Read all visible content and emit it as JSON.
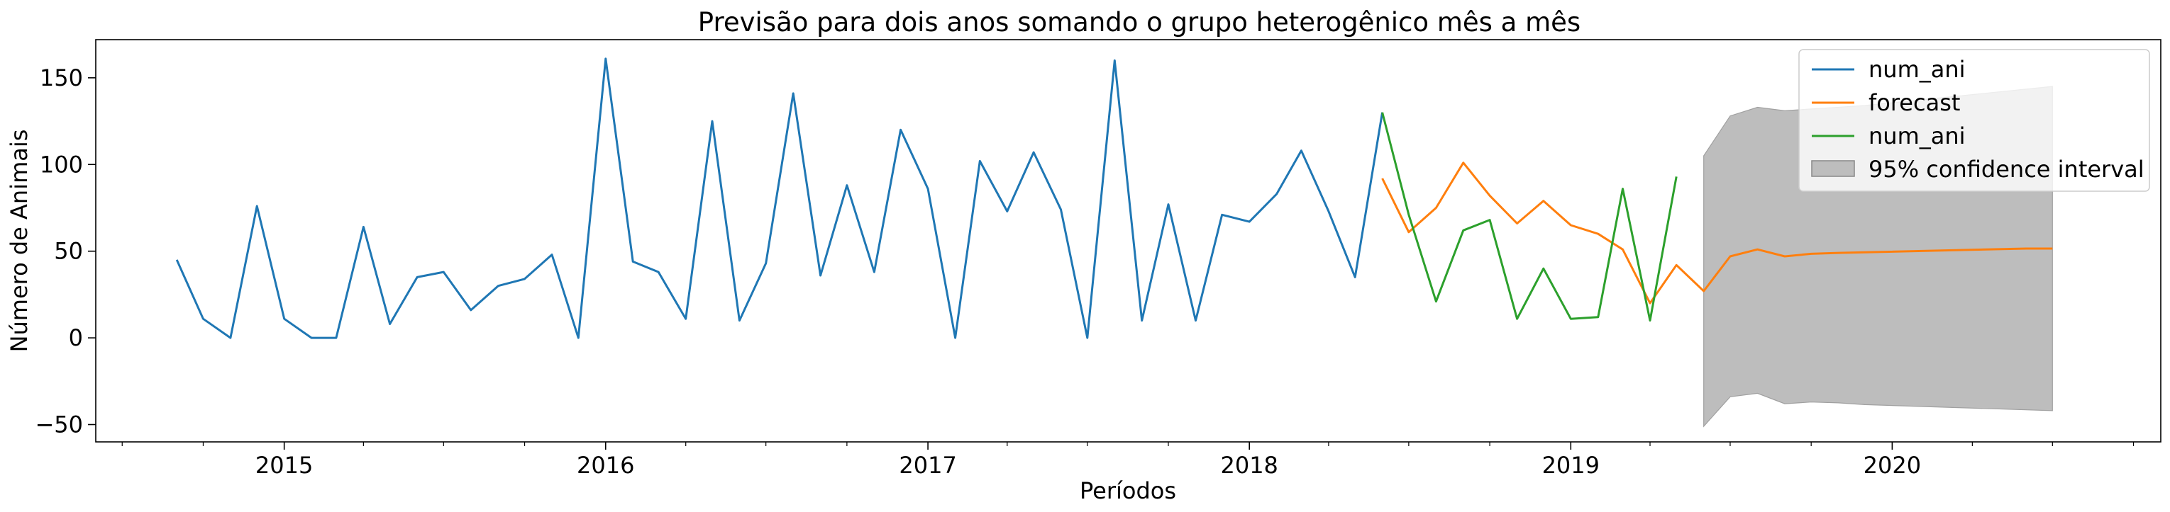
{
  "chart_data": {
    "type": "line",
    "title": "Previsão para dois anos somando o grupo heterogênico mês a mês",
    "xlabel": "Períodos",
    "ylabel": "Número de Animais",
    "xlim": [
      "2014-06-01",
      "2020-11-01"
    ],
    "ylim": [
      -60,
      172
    ],
    "x_ticks": [
      {
        "date": "2015-01-01",
        "label": "2015"
      },
      {
        "date": "2016-01-01",
        "label": "2016"
      },
      {
        "date": "2017-01-01",
        "label": "2017"
      },
      {
        "date": "2018-01-01",
        "label": "2018"
      },
      {
        "date": "2019-01-01",
        "label": "2019"
      },
      {
        "date": "2020-01-01",
        "label": "2020"
      }
    ],
    "y_ticks": [
      -50,
      0,
      50,
      100,
      150
    ],
    "legend_position": "upper-right",
    "series": [
      {
        "name": "num_ani",
        "color": "#1f77b4",
        "x": [
          "2014-09-01",
          "2014-10-01",
          "2014-11-01",
          "2014-12-01",
          "2015-01-01",
          "2015-02-01",
          "2015-03-01",
          "2015-04-01",
          "2015-05-01",
          "2015-06-01",
          "2015-07-01",
          "2015-08-01",
          "2015-09-01",
          "2015-10-01",
          "2015-11-01",
          "2015-12-01",
          "2016-01-01",
          "2016-02-01",
          "2016-03-01",
          "2016-04-01",
          "2016-05-01",
          "2016-06-01",
          "2016-07-01",
          "2016-08-01",
          "2016-09-01",
          "2016-10-01",
          "2016-11-01",
          "2016-12-01",
          "2017-01-01",
          "2017-02-01",
          "2017-03-01",
          "2017-04-01",
          "2017-05-01",
          "2017-06-01",
          "2017-07-01",
          "2017-08-01",
          "2017-09-01",
          "2017-10-01",
          "2017-11-01",
          "2017-12-01",
          "2018-01-01",
          "2018-02-01",
          "2018-03-01",
          "2018-04-01",
          "2018-05-01",
          "2018-06-01"
        ],
        "values": [
          45,
          11,
          0,
          76,
          11,
          0,
          0,
          64,
          8,
          35,
          38,
          16,
          30,
          34,
          48,
          0,
          161,
          44,
          38,
          11,
          125,
          10,
          43,
          141,
          36,
          88,
          38,
          120,
          86,
          0,
          102,
          73,
          107,
          74,
          0,
          160,
          10,
          77,
          10,
          71,
          67,
          83,
          108,
          73,
          35,
          130
        ]
      },
      {
        "name": "forecast",
        "color": "#ff7f0e",
        "x": [
          "2018-06-01",
          "2018-07-01",
          "2018-08-01",
          "2018-09-01",
          "2018-10-01",
          "2018-11-01",
          "2018-12-01",
          "2019-01-01",
          "2019-02-01",
          "2019-03-01",
          "2019-04-01",
          "2019-05-01",
          "2019-06-01",
          "2019-07-01",
          "2019-08-01",
          "2019-09-01",
          "2019-10-01",
          "2019-11-01",
          "2020-06-01",
          "2020-07-01"
        ],
        "values": [
          92,
          61,
          75,
          101,
          82,
          66,
          79,
          65,
          60,
          51,
          20,
          42,
          27,
          47,
          51,
          47,
          48.5,
          49,
          51.5,
          51.5
        ]
      },
      {
        "name": "num_ani",
        "color": "#2ca02c",
        "x": [
          "2018-06-01",
          "2018-07-01",
          "2018-08-01",
          "2018-09-01",
          "2018-10-01",
          "2018-11-01",
          "2018-12-01",
          "2019-01-01",
          "2019-02-01",
          "2019-03-01",
          "2019-04-01",
          "2019-05-01"
        ],
        "values": [
          130,
          71,
          21,
          62,
          68,
          11,
          40,
          11,
          12,
          86,
          10,
          93
        ]
      }
    ],
    "confidence_interval": {
      "name": "95% confidence interval",
      "color": "#bdbdbd",
      "x": [
        "2019-06-01",
        "2019-07-01",
        "2019-08-01",
        "2019-09-01",
        "2019-10-01",
        "2019-11-01",
        "2019-12-01",
        "2020-07-01"
      ],
      "upper": [
        105,
        128,
        133,
        131,
        132,
        133,
        134,
        145
      ],
      "lower": [
        -51,
        -34,
        -32,
        -38,
        -37,
        -37.5,
        -38.5,
        -42
      ]
    }
  }
}
